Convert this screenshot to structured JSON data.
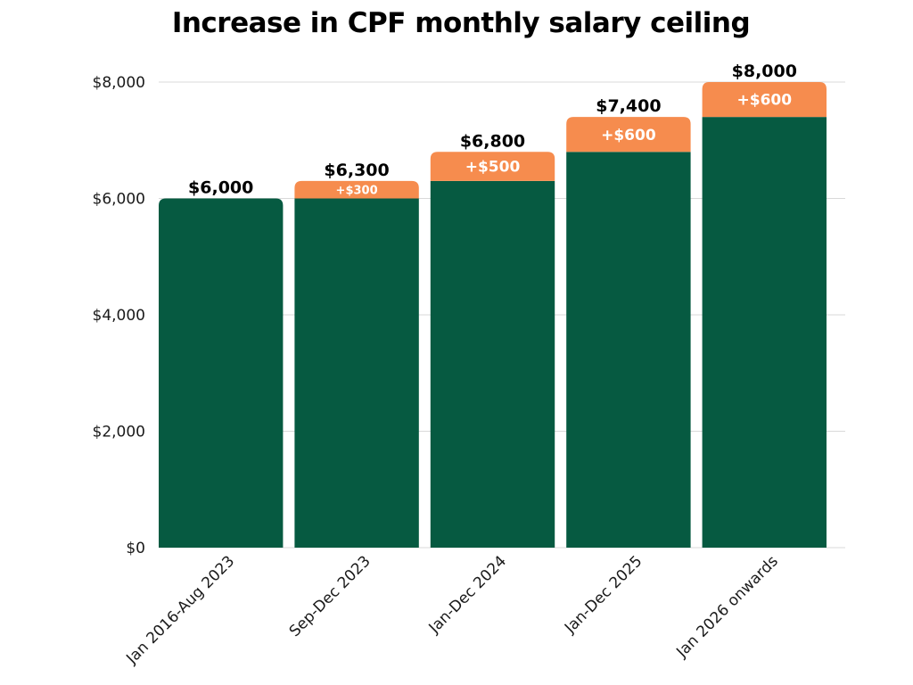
{
  "chart_data": {
    "type": "bar",
    "stacked": true,
    "title": "Increase in CPF monthly salary ceiling",
    "categories": [
      "Jan 2016-Aug 2023",
      "Sep-Dec 2023",
      "Jan-Dec 2024",
      "Jan-Dec 2025",
      "Jan 2026 onwards"
    ],
    "series": [
      {
        "values": [
          6000,
          6000,
          6300,
          6800,
          7400
        ],
        "color": "#065a41"
      },
      {
        "values": [
          0,
          300,
          500,
          600,
          600
        ],
        "color": "#f68c4e"
      }
    ],
    "totals": [
      6000,
      6300,
      6800,
      7400,
      8000
    ],
    "total_labels": [
      "$6,000",
      "$6,300",
      "$6,800",
      "$7,400",
      "$8,000"
    ],
    "increment_labels": [
      "",
      "+$300",
      "+$500",
      "+$600",
      "+$600"
    ],
    "yticks": [
      0,
      2000,
      4000,
      6000,
      8000
    ],
    "ytick_labels": [
      "$0",
      "$2,000",
      "$4,000",
      "$6,000",
      "$8,000"
    ],
    "ylim": [
      0,
      8000
    ],
    "grid": true,
    "legend": "none",
    "xlabel": "",
    "ylabel": ""
  }
}
